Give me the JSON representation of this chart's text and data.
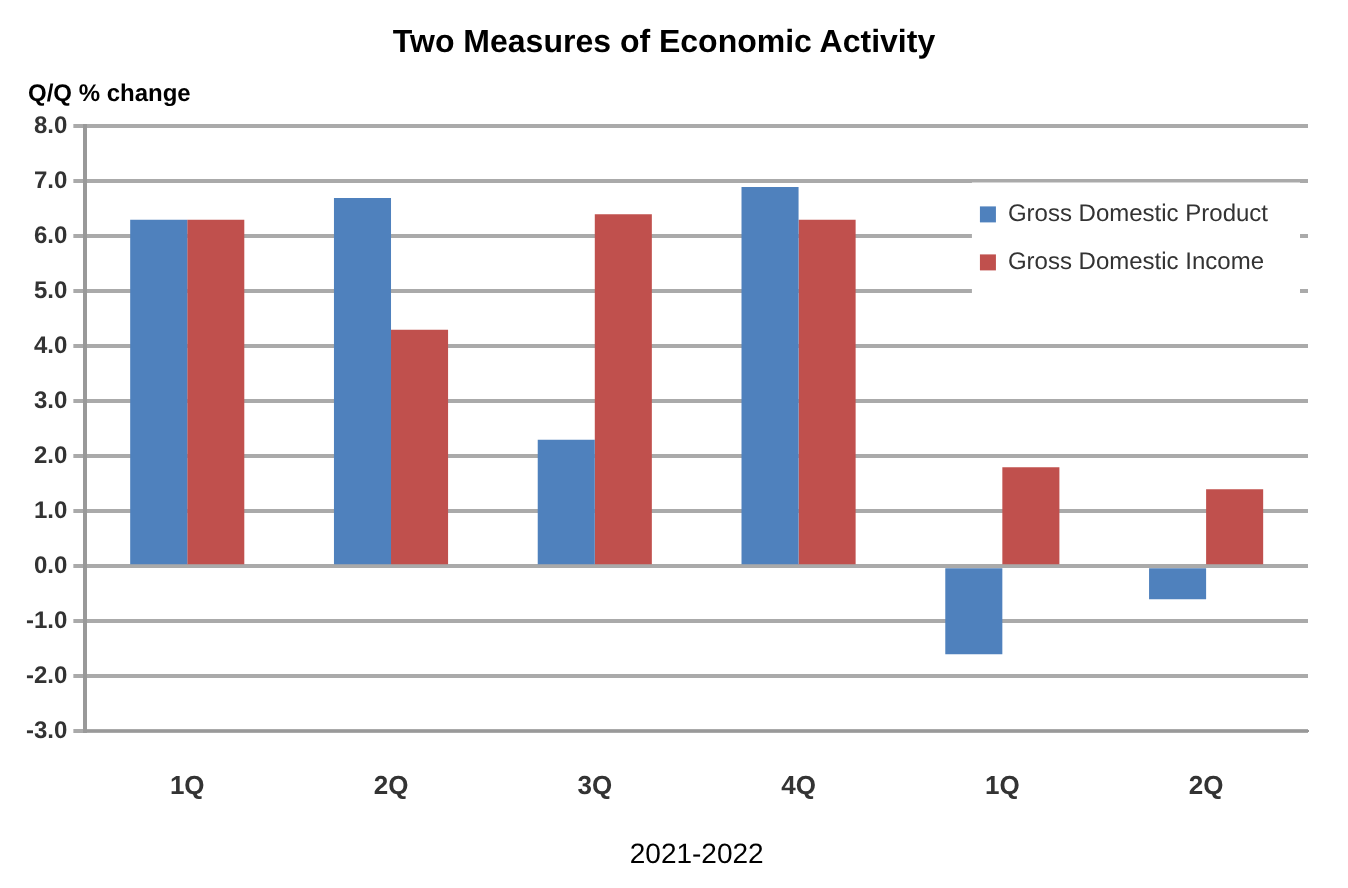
{
  "chart_data": {
    "type": "bar",
    "title": "Two Measures of Economic Activity",
    "ylabel": "Q/Q % change",
    "xlabel": "2021-2022",
    "categories": [
      "1Q",
      "2Q",
      "3Q",
      "4Q",
      "1Q",
      "2Q"
    ],
    "series": [
      {
        "name": "Gross Domestic Product",
        "color": "#4f81bd",
        "values": [
          6.3,
          6.7,
          2.3,
          6.9,
          -1.6,
          -0.6
        ]
      },
      {
        "name": "Gross Domestic Income",
        "color": "#c0504d",
        "values": [
          6.3,
          4.3,
          6.4,
          6.3,
          1.8,
          1.4
        ]
      }
    ],
    "ylim": [
      -3,
      8
    ],
    "yticks": [
      {
        "value": -3,
        "label": "-3.0"
      },
      {
        "value": -2,
        "label": "-2.0"
      },
      {
        "value": -1,
        "label": "-1.0"
      },
      {
        "value": 0,
        "label": "0.0"
      },
      {
        "value": 1,
        "label": "1.0"
      },
      {
        "value": 2,
        "label": "2.0"
      },
      {
        "value": 3,
        "label": "3.0"
      },
      {
        "value": 4,
        "label": "4.0"
      },
      {
        "value": 5,
        "label": "5.0"
      },
      {
        "value": 6,
        "label": "6.0"
      },
      {
        "value": 7,
        "label": "7.0"
      },
      {
        "value": 8,
        "label": "8.0"
      }
    ],
    "grid": "y",
    "legend": "top right"
  }
}
